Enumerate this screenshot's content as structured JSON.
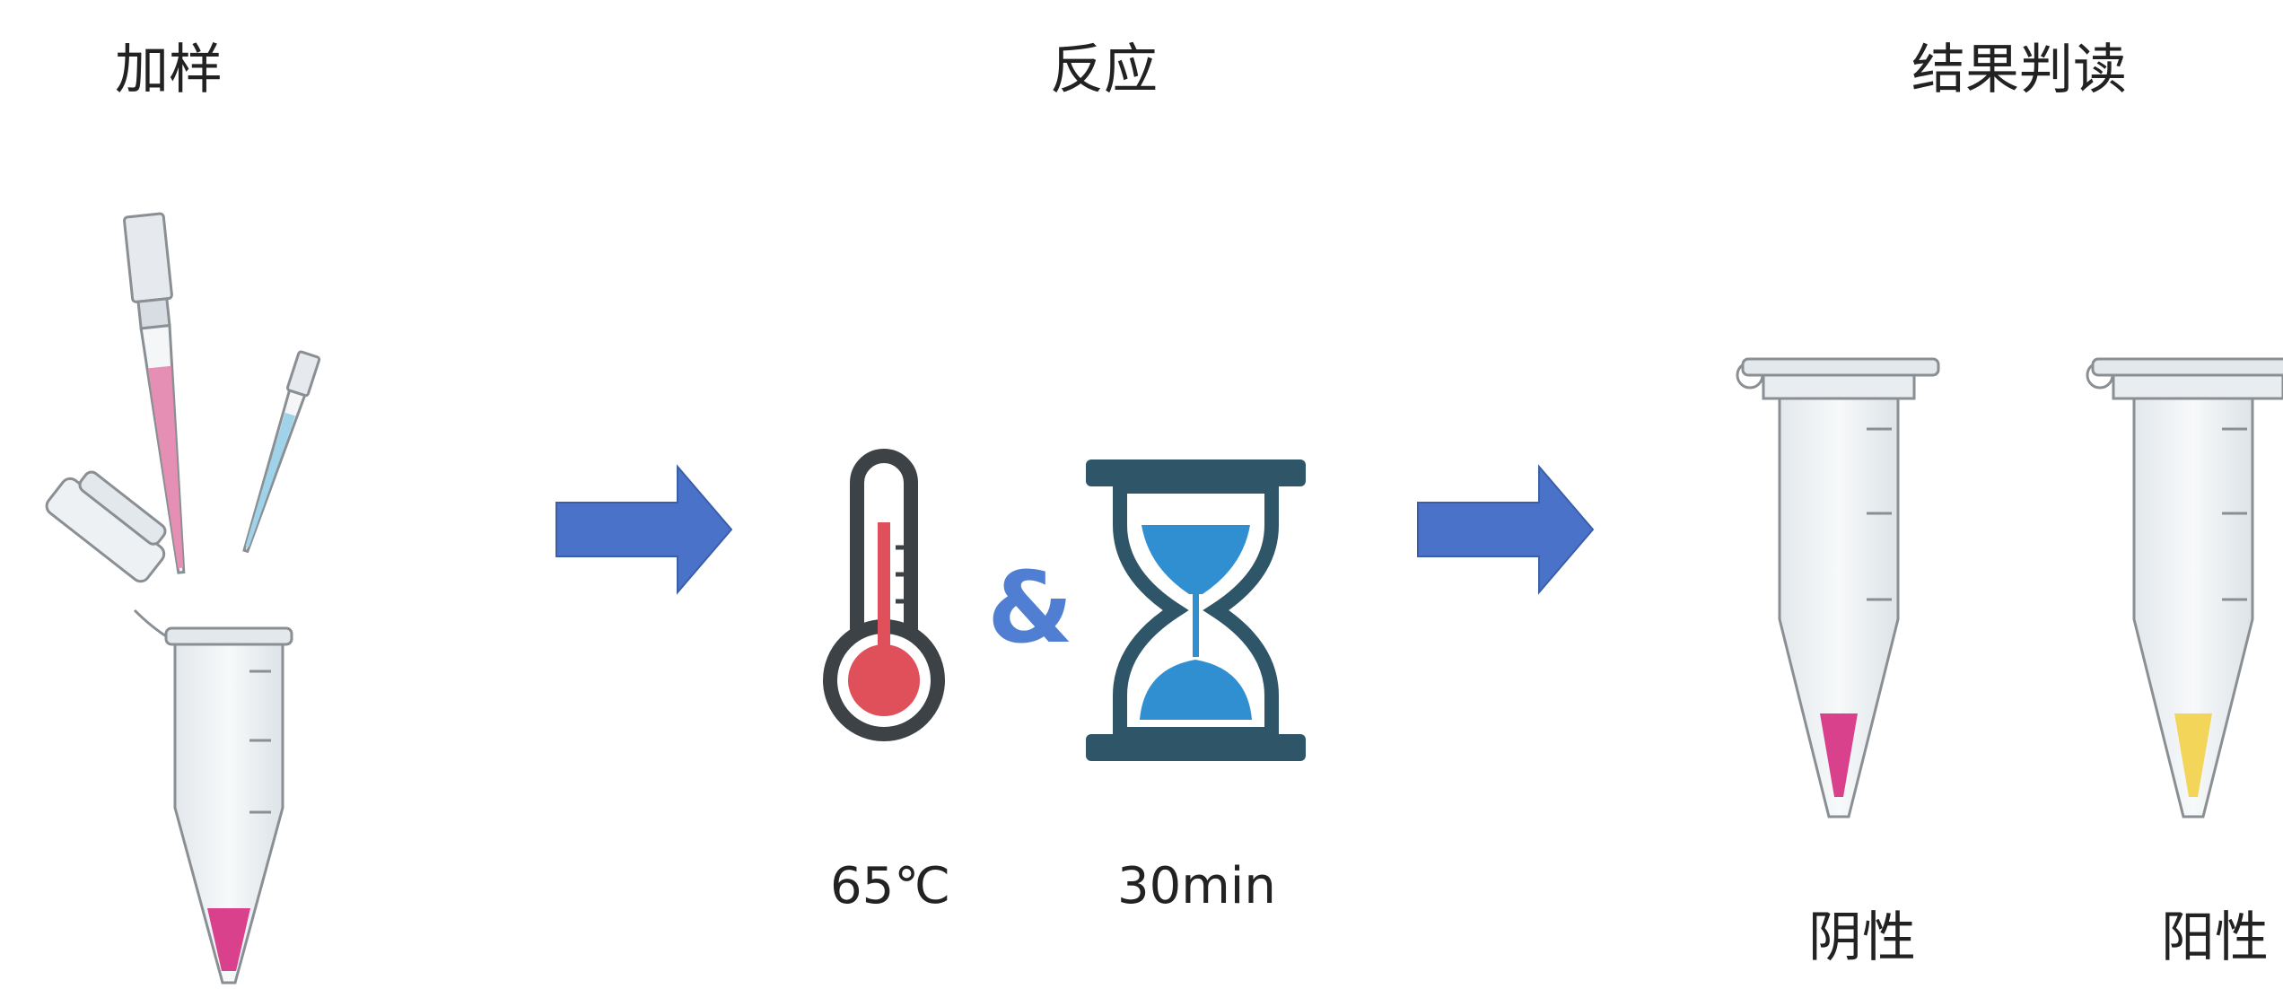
{
  "steps": {
    "add_sample": {
      "title": "加样"
    },
    "reaction": {
      "title": "反应",
      "temperature": "65℃",
      "time": "30min",
      "connector": "&"
    },
    "read_result": {
      "title": "结果判读",
      "negative": "阴性",
      "positive": "阳性"
    }
  },
  "colors": {
    "arrow": "#4a72c9",
    "sample_pink": "#d9418d",
    "positive_yellow": "#f3d55a",
    "thermometer_red": "#e0505a",
    "hourglass_frame": "#2f5568",
    "hourglass_sand": "#2f8fd0",
    "tube_outline": "#8a8f94",
    "tube_fill": "#eef1f3"
  },
  "icons": [
    "pipette-icon",
    "tube-icon",
    "arrow-right-icon",
    "thermometer-icon",
    "hourglass-icon"
  ]
}
